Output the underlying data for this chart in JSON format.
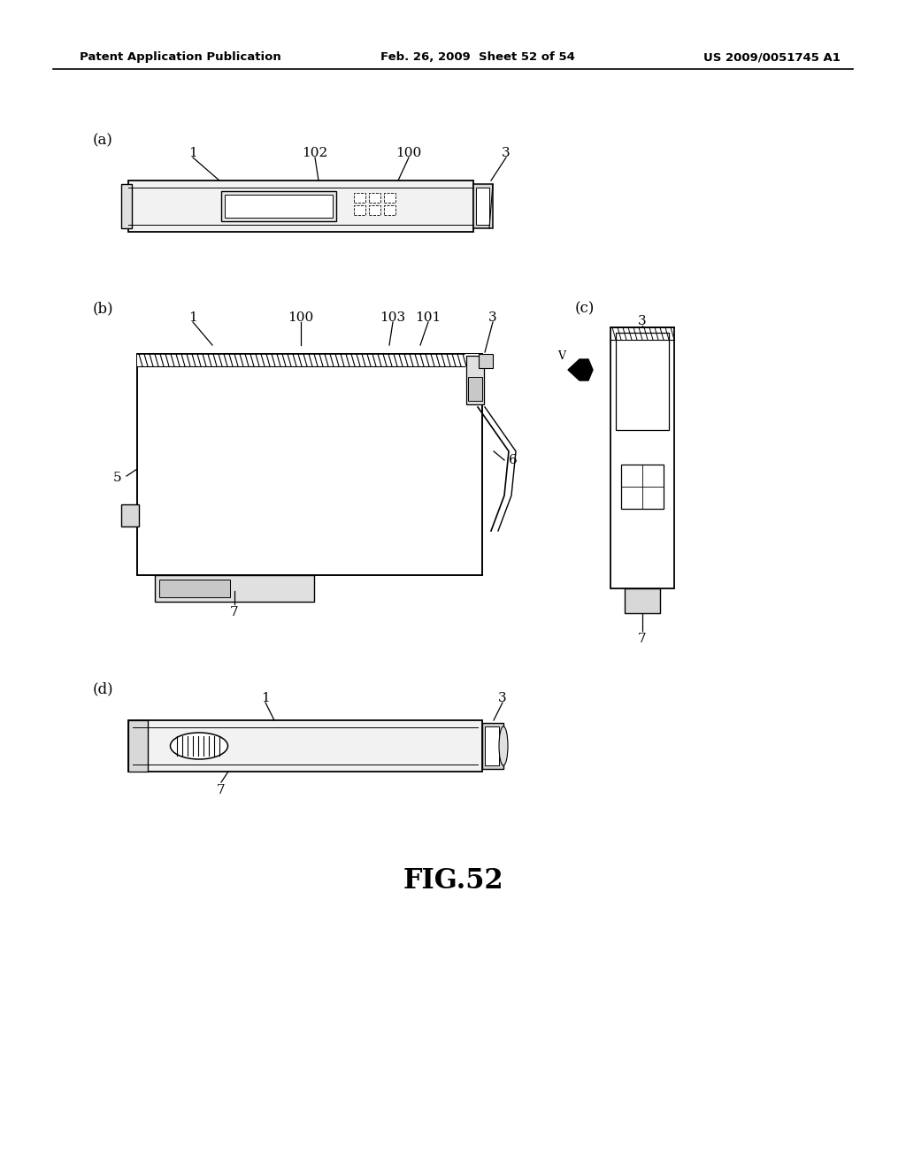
{
  "bg_color": "#ffffff",
  "header_left": "Patent Application Publication",
  "header_mid": "Feb. 26, 2009  Sheet 52 of 54",
  "header_right": "US 2009/0051745 A1",
  "title": "FIG.52",
  "fig_label_a": "(a)",
  "fig_label_b": "(b)",
  "fig_label_c": "(c)",
  "fig_label_d": "(d)"
}
